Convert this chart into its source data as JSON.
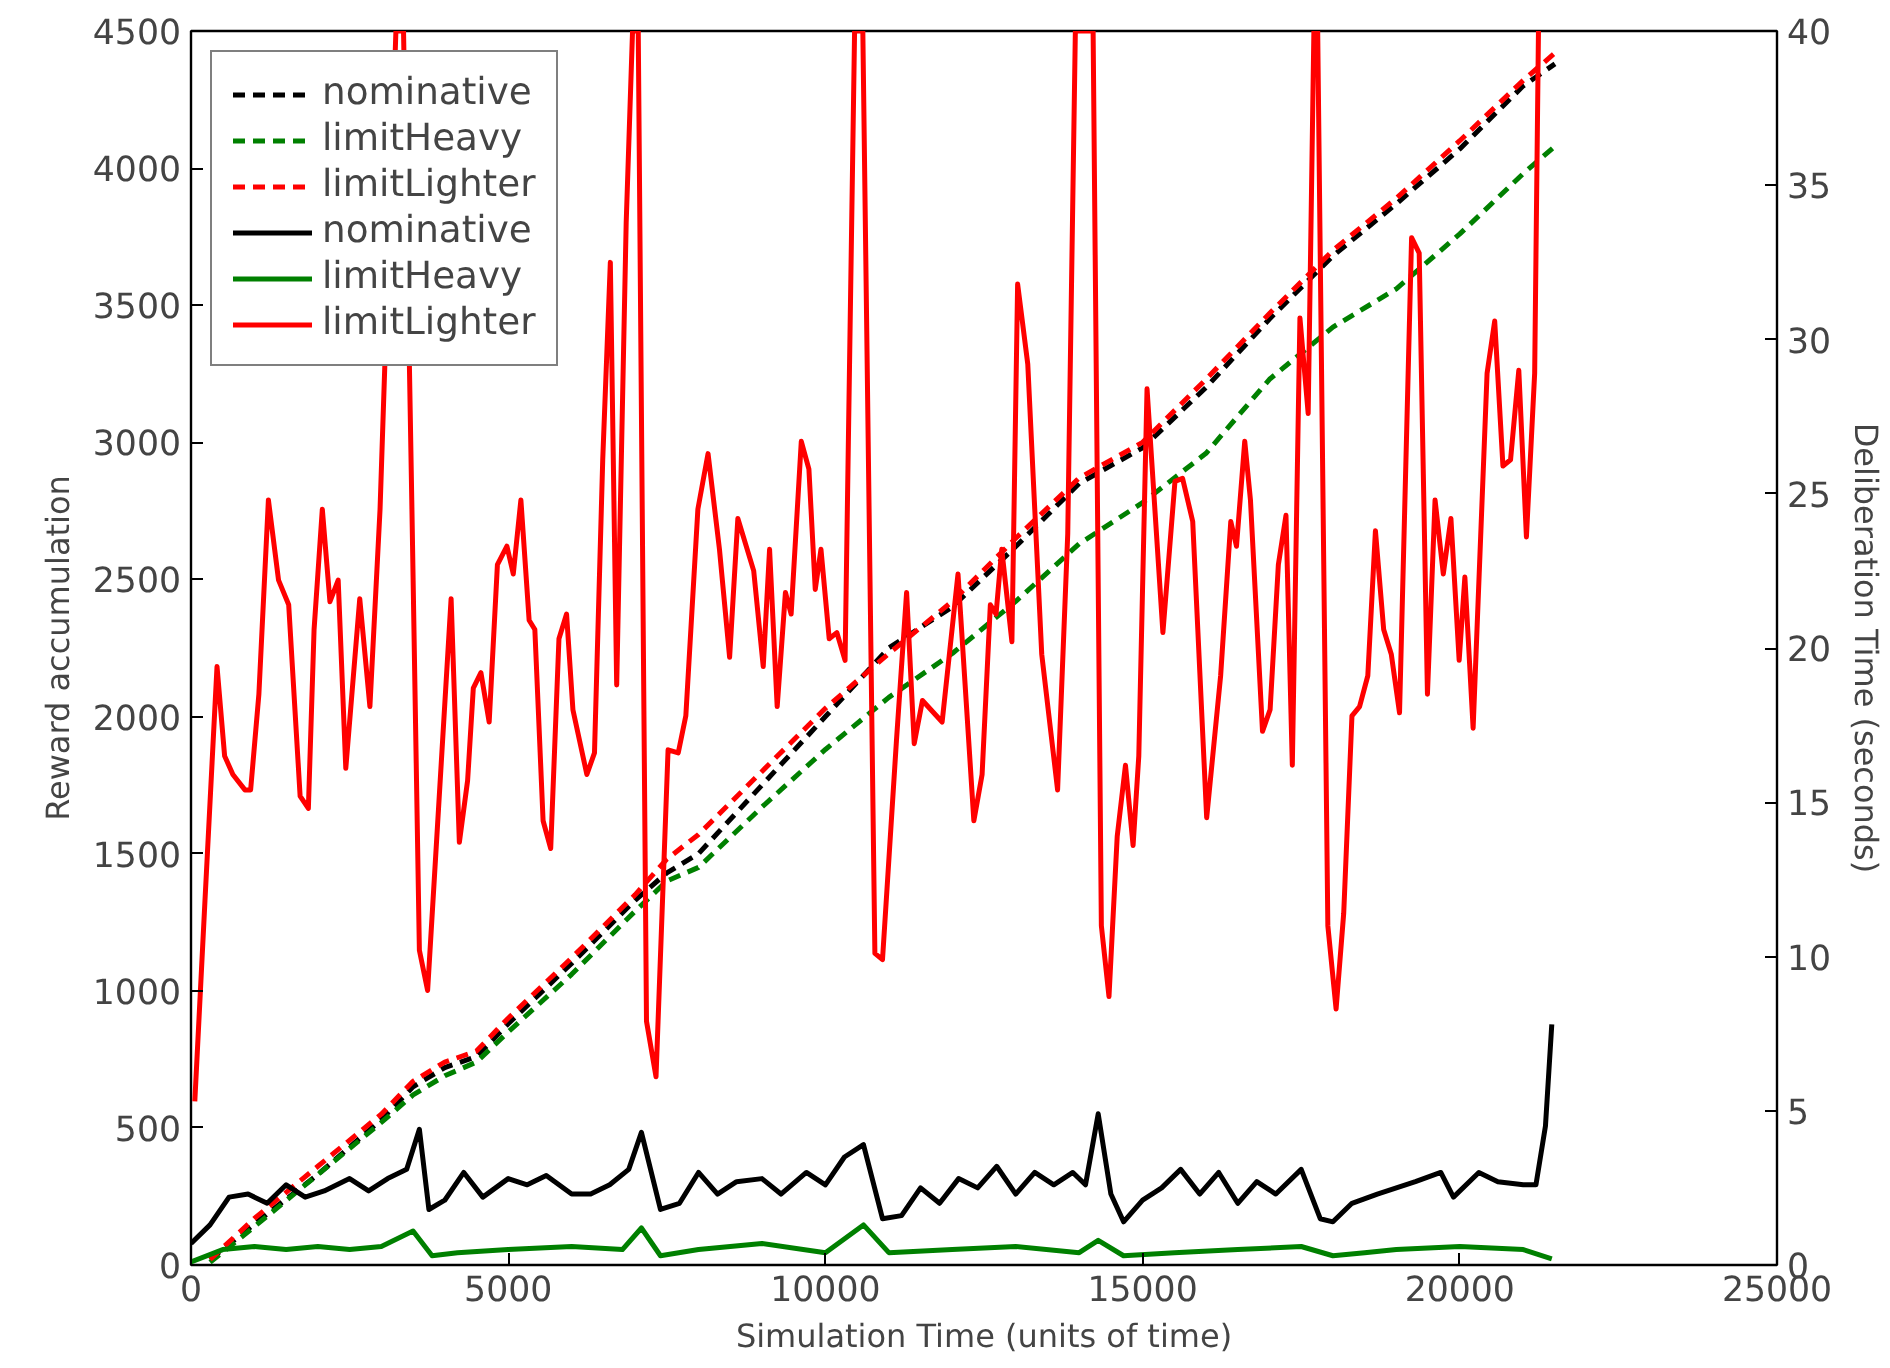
{
  "chart_data": {
    "type": "line",
    "xlabel": "Simulation Time (units of time)",
    "ylabel": "Reward accumulation",
    "y2label": "Deliberation Time (seconds)",
    "xlim": [
      0,
      25000
    ],
    "xticks": [
      0,
      5000,
      10000,
      15000,
      20000,
      25000
    ],
    "ylim": [
      0,
      4500
    ],
    "yticks": [
      0,
      500,
      1000,
      1500,
      2000,
      2500,
      3000,
      3500,
      4000,
      4500
    ],
    "y2lim": [
      0,
      40
    ],
    "y2ticks": [
      0,
      5,
      10,
      15,
      20,
      25,
      30,
      35,
      40
    ],
    "grid": false,
    "legend": "top left",
    "series": [
      {
        "name": "nominative",
        "color": "#000000",
        "line_style": "dashed",
        "x": [
          300,
          1000,
          2000,
          3000,
          3500,
          4000,
          4500,
          5000,
          6000,
          7000,
          7500,
          8000,
          9000,
          10000,
          11000,
          12000,
          13000,
          14000,
          15000,
          16000,
          17000,
          18000,
          19000,
          20000,
          21000,
          21500
        ],
        "values": [
          20,
          150,
          330,
          530,
          650,
          720,
          760,
          880,
          1100,
          1330,
          1430,
          1500,
          1750,
          2000,
          2250,
          2400,
          2620,
          2850,
          2980,
          3200,
          3450,
          3680,
          3870,
          4070,
          4300,
          4380
        ]
      },
      {
        "name": "limitHeavy",
        "color": "#008000",
        "line_style": "dashed",
        "x": [
          300,
          1000,
          2000,
          3000,
          3500,
          4000,
          4500,
          5000,
          6000,
          7000,
          7500,
          8000,
          9000,
          10000,
          11000,
          12000,
          13000,
          14000,
          15000,
          16000,
          17000,
          18000,
          19000,
          20000,
          21000,
          21500
        ],
        "values": [
          10,
          140,
          330,
          520,
          620,
          690,
          740,
          850,
          1060,
          1290,
          1400,
          1450,
          1670,
          1880,
          2070,
          2230,
          2420,
          2630,
          2780,
          2960,
          3230,
          3420,
          3560,
          3760,
          3980,
          4080
        ]
      },
      {
        "name": "limitLighter",
        "color": "#ff0000",
        "line_style": "dashed",
        "x": [
          300,
          1000,
          2000,
          3000,
          3500,
          4000,
          4500,
          5000,
          6000,
          7000,
          7500,
          8000,
          9000,
          10000,
          11000,
          12000,
          13000,
          14000,
          15000,
          16000,
          17000,
          18000,
          19000,
          20000,
          21000,
          21500
        ],
        "values": [
          20,
          170,
          360,
          550,
          670,
          740,
          780,
          900,
          1120,
          1350,
          1480,
          1570,
          1800,
          2030,
          2230,
          2420,
          2650,
          2870,
          3000,
          3230,
          3470,
          3700,
          3890,
          4100,
          4320,
          4420
        ]
      },
      {
        "name": "nominative",
        "color": "#000000",
        "line_style": "solid",
        "axis": "y2",
        "x": [
          0,
          300,
          600,
          900,
          1200,
          1500,
          1800,
          2100,
          2500,
          2800,
          3100,
          3400,
          3600,
          3750,
          4000,
          4300,
          4600,
          5000,
          5300,
          5600,
          6000,
          6300,
          6600,
          6900,
          7100,
          7400,
          7700,
          8000,
          8300,
          8600,
          9000,
          9300,
          9700,
          10000,
          10300,
          10600,
          10900,
          11200,
          11500,
          11800,
          12100,
          12400,
          12700,
          13000,
          13300,
          13600,
          13900,
          14100,
          14300,
          14500,
          14700,
          15000,
          15300,
          15600,
          15900,
          16200,
          16500,
          16800,
          17100,
          17500,
          17800,
          18000,
          18300,
          18700,
          19000,
          19300,
          19700,
          19900,
          20300,
          20600,
          21000,
          21200,
          21350,
          21450
        ],
        "values": [
          0.7,
          1.3,
          2.2,
          2.3,
          2.0,
          2.6,
          2.2,
          2.4,
          2.8,
          2.4,
          2.8,
          3.1,
          4.4,
          1.8,
          2.1,
          3.0,
          2.2,
          2.8,
          2.6,
          2.9,
          2.3,
          2.3,
          2.6,
          3.1,
          4.3,
          1.8,
          2.0,
          3.0,
          2.3,
          2.7,
          2.8,
          2.3,
          3.0,
          2.6,
          3.5,
          3.9,
          1.5,
          1.6,
          2.5,
          2.0,
          2.8,
          2.5,
          3.2,
          2.3,
          3.0,
          2.6,
          3.0,
          2.6,
          4.9,
          2.3,
          1.4,
          2.1,
          2.5,
          3.1,
          2.3,
          3.0,
          2.0,
          2.7,
          2.3,
          3.1,
          1.5,
          1.4,
          2.0,
          2.3,
          2.5,
          2.7,
          3.0,
          2.2,
          3.0,
          2.7,
          2.6,
          2.6,
          4.5,
          7.8
        ]
      },
      {
        "name": "limitHeavy",
        "color": "#008000",
        "line_style": "solid",
        "axis": "y2",
        "x": [
          0,
          500,
          1000,
          1500,
          2000,
          2500,
          3000,
          3500,
          3800,
          4200,
          5000,
          6000,
          6800,
          7100,
          7400,
          8000,
          9000,
          10000,
          10600,
          11000,
          12000,
          13000,
          14000,
          14300,
          14700,
          15500,
          16500,
          17500,
          18000,
          18500,
          19000,
          20000,
          21000,
          21450
        ],
        "values": [
          0.1,
          0.5,
          0.6,
          0.5,
          0.6,
          0.5,
          0.6,
          1.1,
          0.3,
          0.4,
          0.5,
          0.6,
          0.5,
          1.2,
          0.3,
          0.5,
          0.7,
          0.4,
          1.3,
          0.4,
          0.5,
          0.6,
          0.4,
          0.8,
          0.3,
          0.4,
          0.5,
          0.6,
          0.3,
          0.4,
          0.5,
          0.6,
          0.5,
          0.2
        ]
      },
      {
        "name": "limitLighter",
        "color": "#ff0000",
        "line_style": "solid",
        "axis": "y2",
        "x": [
          60,
          220,
          410,
          530,
          660,
          850,
          940,
          1070,
          1220,
          1380,
          1540,
          1720,
          1850,
          1940,
          2070,
          2190,
          2320,
          2440,
          2660,
          2820,
          2980,
          3230,
          3350,
          3480,
          3600,
          3730,
          4100,
          4230,
          4360,
          4450,
          4570,
          4700,
          4830,
          4980,
          5080,
          5200,
          5330,
          5420,
          5550,
          5670,
          5800,
          5920,
          6020,
          6240,
          6360,
          6490,
          6610,
          6710,
          6860,
          6960,
          7050,
          7180,
          7330,
          7520,
          7680,
          7800,
          7990,
          8150,
          8330,
          8490,
          8620,
          8870,
          9020,
          9120,
          9240,
          9370,
          9460,
          9620,
          9740,
          9840,
          9930,
          10060,
          10180,
          10310,
          10460,
          10590,
          10780,
          10900,
          11120,
          11280,
          11400,
          11530,
          11840,
          12090,
          12340,
          12470,
          12600,
          12690,
          12780,
          12940,
          13030,
          13190,
          13410,
          13660,
          13820,
          13940,
          14220,
          14350,
          14470,
          14600,
          14730,
          14850,
          14940,
          15070,
          15320,
          15510,
          15630,
          15790,
          16010,
          16230,
          16390,
          16480,
          16610,
          16700,
          16890,
          17010,
          17140,
          17260,
          17360,
          17480,
          17610,
          17700,
          17760,
          17920,
          18050,
          18170,
          18300,
          18420,
          18550,
          18670,
          18800,
          18920,
          19050,
          19240,
          19360,
          19490,
          19610,
          19740,
          19860,
          19990,
          20080,
          20210,
          20430,
          20550,
          20680,
          20800,
          20930,
          21050,
          21180,
          21240
        ],
        "values": [
          5.3,
          11.8,
          19.4,
          16.5,
          15.9,
          15.4,
          15.4,
          18.5,
          24.8,
          22.2,
          21.4,
          15.2,
          14.8,
          20.6,
          24.5,
          21.5,
          22.2,
          16.1,
          21.6,
          18.1,
          24.5,
          40,
          40,
          24.8,
          10.2,
          8.9,
          21.6,
          13.7,
          15.7,
          18.7,
          19.2,
          17.6,
          22.7,
          23.3,
          22.4,
          24.8,
          20.9,
          20.6,
          14.4,
          13.5,
          20.3,
          21.1,
          18.0,
          15.9,
          16.6,
          26.1,
          32.5,
          18.8,
          33.8,
          40,
          40,
          7.9,
          6.1,
          16.7,
          16.6,
          17.8,
          24.5,
          26.3,
          23.2,
          19.7,
          24.2,
          22.5,
          19.4,
          23.2,
          18.1,
          21.8,
          21.1,
          26.7,
          25.8,
          21.9,
          23.2,
          20.3,
          20.5,
          19.6,
          40,
          40,
          10.1,
          9.9,
          17.0,
          21.8,
          16.9,
          18.3,
          17.6,
          22.4,
          14.4,
          15.9,
          21.4,
          21.1,
          23.2,
          20.2,
          31.8,
          29.2,
          19.8,
          15.4,
          23.7,
          40,
          40,
          11.0,
          8.7,
          13.9,
          16.2,
          13.6,
          16.5,
          28.4,
          20.5,
          25.4,
          25.5,
          24.1,
          14.5,
          19.1,
          24.1,
          23.3,
          26.7,
          24.8,
          17.3,
          18.0,
          22.7,
          24.3,
          16.2,
          30.7,
          27.6,
          40,
          40,
          11.0,
          8.3,
          11.4,
          17.8,
          18.1,
          19.1,
          23.8,
          20.6,
          19.8,
          17.9,
          33.3,
          32.8,
          18.5,
          24.8,
          22.4,
          24.2,
          19.6,
          22.3,
          17.4,
          28.9,
          30.6,
          25.9,
          26.1,
          29.0,
          23.6,
          28.9,
          40
        ]
      }
    ]
  }
}
